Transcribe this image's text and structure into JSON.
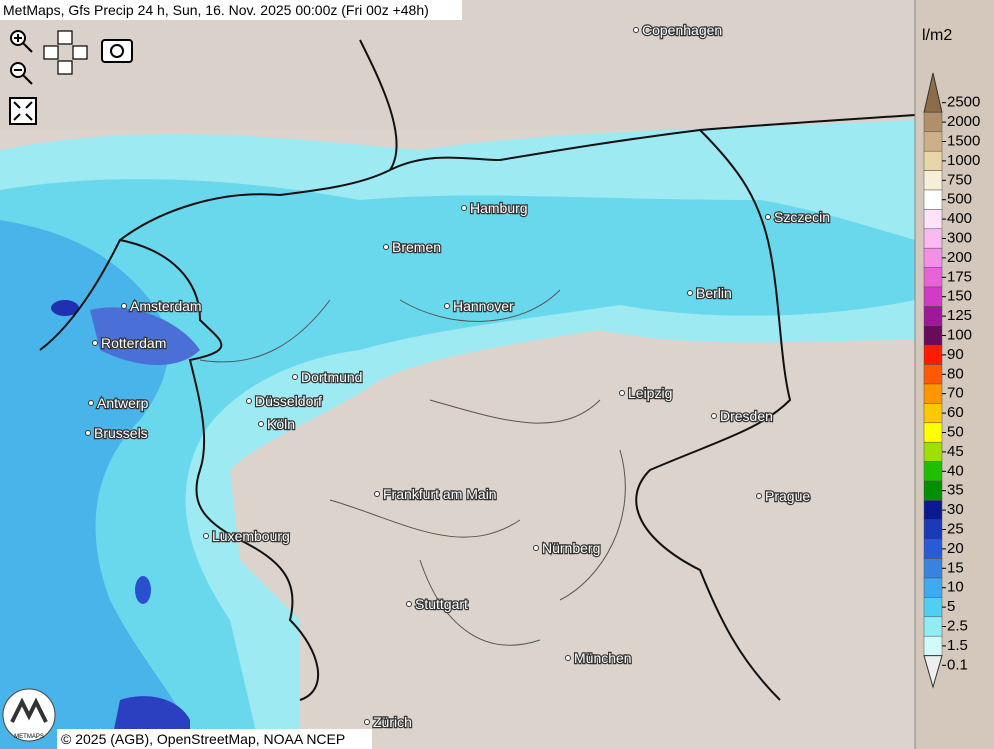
{
  "header": {
    "title": "MetMaps, Gfs Precip 24 h, Sun, 16. Nov. 2025 00:00z (Fri 00z +48h)"
  },
  "cities": [
    "Copenhagen",
    "Hamburg",
    "Szczecin",
    "Bremen",
    "Berlin",
    "Amsterdam",
    "Hannover",
    "Rotterdam",
    "Dortmund",
    "Leipzig",
    "Antwerp",
    "Düsseldorf",
    "Dresden",
    "Brussels",
    "Köln",
    "Frankfurt am Main",
    "Prague",
    "Luxembourg",
    "Nürnberg",
    "Stuttgart",
    "München",
    "Zürich"
  ],
  "legend": {
    "unit": "l/m2",
    "items": [
      {
        "label": "2500",
        "color": "#8c6d47"
      },
      {
        "label": "2000",
        "color": "#b0906a"
      },
      {
        "label": "1500",
        "color": "#cdb088"
      },
      {
        "label": "1000",
        "color": "#e8d6a8"
      },
      {
        "label": "750",
        "color": "#f6eed6"
      },
      {
        "label": "500",
        "color": "#ffffff"
      },
      {
        "label": "400",
        "color": "#fde2fa"
      },
      {
        "label": "300",
        "color": "#f9baf2"
      },
      {
        "label": "200",
        "color": "#f290e6"
      },
      {
        "label": "175",
        "color": "#e862d8"
      },
      {
        "label": "150",
        "color": "#d03cc4"
      },
      {
        "label": "125",
        "color": "#a0189a"
      },
      {
        "label": "100",
        "color": "#6a0a5a"
      },
      {
        "label": "90",
        "color": "#ff1a00"
      },
      {
        "label": "80",
        "color": "#ff5a00"
      },
      {
        "label": "70",
        "color": "#ff9600"
      },
      {
        "label": "60",
        "color": "#ffc800"
      },
      {
        "label": "50",
        "color": "#ffff00"
      },
      {
        "label": "45",
        "color": "#a0e000"
      },
      {
        "label": "40",
        "color": "#20c000"
      },
      {
        "label": "35",
        "color": "#009000"
      },
      {
        "label": "30",
        "color": "#0a1a90"
      },
      {
        "label": "25",
        "color": "#1a3ab8"
      },
      {
        "label": "20",
        "color": "#2a5ad8"
      },
      {
        "label": "15",
        "color": "#3a82e0"
      },
      {
        "label": "10",
        "color": "#40aaf0"
      },
      {
        "label": "5",
        "color": "#50d0f0"
      },
      {
        "label": "2.5",
        "color": "#92ecf4"
      },
      {
        "label": "1.5",
        "color": "#d2fafa"
      },
      {
        "label": "0.1",
        "color": "#eeeeee"
      }
    ]
  },
  "logo": "METMAPS",
  "footer": "© 2025 (AGB), OpenStreetMap, NOAA NCEP"
}
